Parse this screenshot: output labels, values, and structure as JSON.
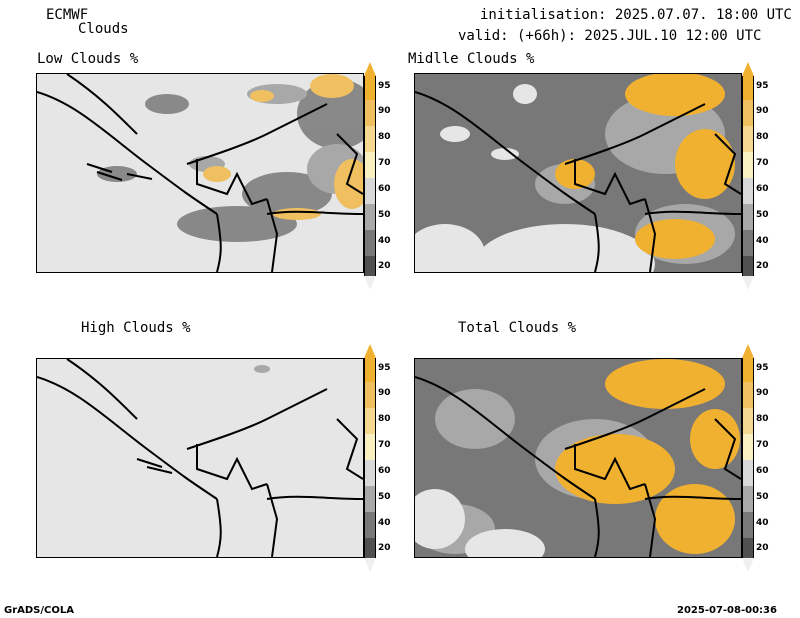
{
  "header": {
    "model": "ECMWF",
    "parameter": "Clouds",
    "init": "initialisation: 2025.07.07. 18:00 UTC",
    "valid": "valid: (+66h): 2025.JUL.10 12:00 UTC"
  },
  "panels": [
    {
      "title": "Low Clouds %"
    },
    {
      "title": "Midlle Clouds %"
    },
    {
      "title": "High Clouds %"
    },
    {
      "title": "Total Clouds %"
    }
  ],
  "colorbar": {
    "labels": [
      "95",
      "90",
      "80",
      "70",
      "60",
      "50",
      "40",
      "20"
    ],
    "colors": [
      "#f0b030",
      "#f0c060",
      "#f5d890",
      "#f8f0c0",
      "#d8d8d8",
      "#a8a8a8",
      "#787878",
      "#505050"
    ]
  },
  "footer": {
    "left": "GrADS/COLA",
    "right": "2025-07-08-00:36"
  }
}
